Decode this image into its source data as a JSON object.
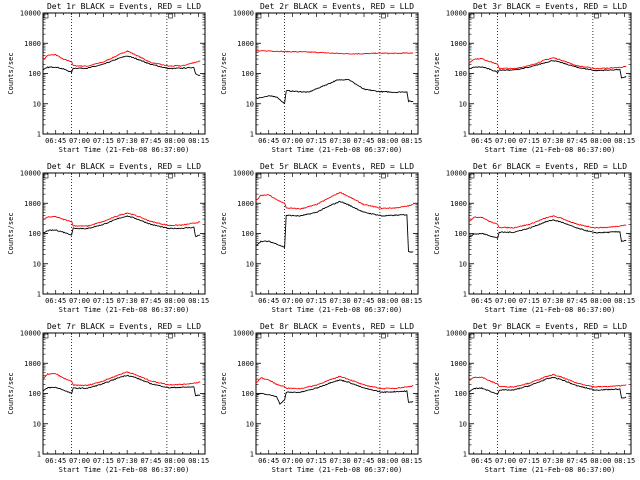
{
  "chart_data": [
    {
      "type": "line",
      "title": "Det 1r BLACK = Events, RED = LLD",
      "xlabel": "Start Time (21-Feb-08 06:37:00)",
      "ylabel": "Counts/sec",
      "yscale": "log",
      "ylim": [
        1,
        10000
      ],
      "xlim": [
        "06:37",
        "08:19"
      ],
      "x_ticks": [
        "06:45",
        "07:00",
        "07:15",
        "07:30",
        "07:45",
        "08:00",
        "08:15"
      ],
      "y_ticks": [
        "1",
        "10",
        "100",
        "1000",
        "10000"
      ],
      "markers": [
        "06:55",
        "07:55"
      ],
      "series": [
        {
          "color": "#ff0000",
          "x": [
            "06:37",
            "06:40",
            "06:45",
            "06:50",
            "06:55",
            "06:56",
            "07:05",
            "07:15",
            "07:25",
            "07:30",
            "07:35",
            "07:45",
            "07:55",
            "07:56",
            "08:05",
            "08:12",
            "08:16"
          ],
          "values": [
            280,
            400,
            420,
            290,
            250,
            180,
            175,
            240,
            420,
            560,
            420,
            230,
            180,
            175,
            180,
            230,
            260
          ]
        },
        {
          "color": "#000000",
          "x": [
            "06:37",
            "06:40",
            "06:45",
            "06:50",
            "06:55",
            "06:56",
            "07:05",
            "07:15",
            "07:25",
            "07:30",
            "07:35",
            "07:45",
            "07:55",
            "07:56",
            "08:05",
            "08:12",
            "08:13",
            "08:16"
          ],
          "values": [
            130,
            160,
            165,
            140,
            110,
            150,
            150,
            200,
            320,
            380,
            320,
            200,
            150,
            145,
            150,
            160,
            100,
            85
          ]
        }
      ]
    },
    {
      "type": "line",
      "title": "Det 2r BLACK = Events, RED = LLD",
      "xlabel": "Start Time (21-Feb-08 06:37:00)",
      "ylabel": "Counts/sec",
      "yscale": "log",
      "ylim": [
        1,
        10000
      ],
      "xlim": [
        "06:37",
        "08:19"
      ],
      "x_ticks": [
        "06:45",
        "07:00",
        "07:15",
        "07:30",
        "07:45",
        "08:00",
        "08:15"
      ],
      "y_ticks": [
        "1",
        "10",
        "100",
        "1000",
        "10000"
      ],
      "markers": [
        "06:55",
        "07:55"
      ],
      "series": [
        {
          "color": "#ff0000",
          "x": [
            "06:37",
            "06:45",
            "06:55",
            "07:05",
            "07:15",
            "07:25",
            "07:35",
            "07:45",
            "07:55",
            "08:05",
            "08:16"
          ],
          "values": [
            550,
            560,
            530,
            520,
            500,
            470,
            450,
            450,
            470,
            460,
            480
          ]
        },
        {
          "color": "#000000",
          "x": [
            "06:37",
            "06:45",
            "06:50",
            "06:55",
            "06:56",
            "07:05",
            "07:10",
            "07:20",
            "07:28",
            "07:35",
            "07:45",
            "07:55",
            "07:56",
            "08:05",
            "08:12",
            "08:13",
            "08:16"
          ],
          "values": [
            15,
            18,
            17,
            10,
            27,
            25,
            24,
            40,
            60,
            65,
            30,
            25,
            25,
            24,
            25,
            12,
            12
          ]
        }
      ]
    },
    {
      "type": "line",
      "title": "Det 3r BLACK = Events, RED = LLD",
      "xlabel": "Start Time (21-Feb-08 06:37:00)",
      "ylabel": "Counts/sec",
      "yscale": "log",
      "ylim": [
        1,
        10000
      ],
      "xlim": [
        "06:37",
        "08:19"
      ],
      "x_ticks": [
        "06:45",
        "07:00",
        "07:15",
        "07:30",
        "07:45",
        "08:00",
        "08:15"
      ],
      "y_ticks": [
        "1",
        "10",
        "100",
        "1000",
        "10000"
      ],
      "markers": [
        "06:55",
        "07:55"
      ],
      "series": [
        {
          "color": "#ff0000",
          "x": [
            "06:37",
            "06:40",
            "06:45",
            "06:50",
            "06:55",
            "06:56",
            "07:05",
            "07:15",
            "07:25",
            "07:30",
            "07:35",
            "07:45",
            "07:55",
            "07:56",
            "08:05",
            "08:12",
            "08:16"
          ],
          "values": [
            220,
            300,
            310,
            250,
            200,
            150,
            145,
            180,
            280,
            330,
            280,
            180,
            150,
            145,
            150,
            160,
            170
          ]
        },
        {
          "color": "#000000",
          "x": [
            "06:37",
            "06:40",
            "06:45",
            "06:50",
            "06:55",
            "06:56",
            "07:05",
            "07:15",
            "07:25",
            "07:30",
            "07:35",
            "07:45",
            "07:55",
            "07:56",
            "08:05",
            "08:12",
            "08:13",
            "08:16"
          ],
          "values": [
            140,
            160,
            165,
            140,
            110,
            130,
            130,
            160,
            230,
            270,
            230,
            160,
            130,
            125,
            130,
            135,
            70,
            80
          ]
        }
      ]
    },
    {
      "type": "line",
      "title": "Det 4r BLACK = Events, RED = LLD",
      "xlabel": "Start Time (21-Feb-08 06:37:00)",
      "ylabel": "Counts/sec",
      "yscale": "log",
      "ylim": [
        1,
        10000
      ],
      "xlim": [
        "06:37",
        "08:19"
      ],
      "x_ticks": [
        "06:45",
        "07:00",
        "07:15",
        "07:30",
        "07:45",
        "08:00",
        "08:15"
      ],
      "y_ticks": [
        "1",
        "10",
        "100",
        "1000",
        "10000"
      ],
      "markers": [
        "06:55",
        "07:55"
      ],
      "series": [
        {
          "color": "#ff0000",
          "x": [
            "06:37",
            "06:40",
            "06:45",
            "06:50",
            "06:55",
            "06:56",
            "07:05",
            "07:15",
            "07:25",
            "07:30",
            "07:35",
            "07:45",
            "07:55",
            "07:56",
            "08:05",
            "08:12",
            "08:16"
          ],
          "values": [
            280,
            350,
            360,
            290,
            250,
            180,
            175,
            250,
            400,
            480,
            400,
            250,
            190,
            185,
            190,
            220,
            240
          ]
        },
        {
          "color": "#000000",
          "x": [
            "06:37",
            "06:40",
            "06:45",
            "06:50",
            "06:55",
            "06:56",
            "07:05",
            "07:15",
            "07:25",
            "07:30",
            "07:35",
            "07:45",
            "07:55",
            "07:56",
            "08:05",
            "08:12",
            "08:13",
            "08:16"
          ],
          "values": [
            100,
            125,
            130,
            110,
            90,
            150,
            145,
            200,
            320,
            380,
            320,
            200,
            150,
            145,
            150,
            160,
            80,
            90
          ]
        }
      ]
    },
    {
      "type": "line",
      "title": "Det 5r BLACK = Events, RED = LLD",
      "xlabel": "Start Time (21-Feb-08 06:37:00)",
      "ylabel": "Counts/sec",
      "yscale": "log",
      "ylim": [
        1,
        10000
      ],
      "xlim": [
        "06:37",
        "08:19"
      ],
      "x_ticks": [
        "06:45",
        "07:00",
        "07:15",
        "07:30",
        "07:45",
        "08:00",
        "08:15"
      ],
      "y_ticks": [
        "1",
        "10",
        "100",
        "1000",
        "10000"
      ],
      "markers": [
        "06:55",
        "07:55"
      ],
      "series": [
        {
          "color": "#ff0000",
          "x": [
            "06:37",
            "06:40",
            "06:45",
            "06:50",
            "06:55",
            "06:56",
            "07:05",
            "07:15",
            "07:25",
            "07:30",
            "07:35",
            "07:45",
            "07:55",
            "07:56",
            "08:05",
            "08:12",
            "08:16"
          ],
          "values": [
            1200,
            1800,
            1900,
            1300,
            1000,
            700,
            650,
            900,
            1700,
            2300,
            1700,
            900,
            700,
            680,
            700,
            800,
            900
          ]
        },
        {
          "color": "#000000",
          "x": [
            "06:37",
            "06:40",
            "06:45",
            "06:50",
            "06:55",
            "06:56",
            "07:05",
            "07:15",
            "07:25",
            "07:30",
            "07:35",
            "07:45",
            "07:55",
            "07:56",
            "08:05",
            "08:12",
            "08:13",
            "08:16"
          ],
          "values": [
            40,
            55,
            55,
            45,
            35,
            400,
            380,
            500,
            900,
            1150,
            900,
            500,
            400,
            380,
            400,
            420,
            25,
            25
          ]
        }
      ]
    },
    {
      "type": "line",
      "title": "Det 6r BLACK = Events, RED = LLD",
      "xlabel": "Start Time (21-Feb-08 06:37:00)",
      "ylabel": "Counts/sec",
      "yscale": "log",
      "ylim": [
        1,
        10000
      ],
      "xlim": [
        "06:37",
        "08:19"
      ],
      "x_ticks": [
        "06:45",
        "07:00",
        "07:15",
        "07:30",
        "07:45",
        "08:00",
        "08:15"
      ],
      "y_ticks": [
        "1",
        "10",
        "100",
        "1000",
        "10000"
      ],
      "markers": [
        "06:55",
        "07:55"
      ],
      "series": [
        {
          "color": "#ff0000",
          "x": [
            "06:37",
            "06:40",
            "06:45",
            "06:50",
            "06:55",
            "06:56",
            "07:05",
            "07:15",
            "07:25",
            "07:30",
            "07:35",
            "07:45",
            "07:55",
            "07:56",
            "08:05",
            "08:12",
            "08:16"
          ],
          "values": [
            250,
            340,
            350,
            250,
            200,
            160,
            155,
            200,
            320,
            380,
            320,
            200,
            160,
            155,
            160,
            180,
            190
          ]
        },
        {
          "color": "#000000",
          "x": [
            "06:37",
            "06:40",
            "06:45",
            "06:50",
            "06:55",
            "06:56",
            "07:05",
            "07:15",
            "07:25",
            "07:30",
            "07:35",
            "07:45",
            "07:55",
            "07:56",
            "08:05",
            "08:12",
            "08:13",
            "08:16"
          ],
          "values": [
            75,
            95,
            100,
            85,
            70,
            110,
            110,
            150,
            240,
            280,
            240,
            150,
            110,
            105,
            110,
            115,
            55,
            60
          ]
        }
      ]
    },
    {
      "type": "line",
      "title": "Det 7r BLACK = Events, RED = LLD",
      "xlabel": "Start Time (21-Feb-08 06:37:00)",
      "ylabel": "Counts/sec",
      "yscale": "log",
      "ylim": [
        1,
        10000
      ],
      "xlim": [
        "06:37",
        "08:19"
      ],
      "x_ticks": [
        "06:45",
        "07:00",
        "07:15",
        "07:30",
        "07:45",
        "08:00",
        "08:15"
      ],
      "y_ticks": [
        "1",
        "10",
        "100",
        "1000",
        "10000"
      ],
      "markers": [
        "06:55",
        "07:55"
      ],
      "series": [
        {
          "color": "#ff0000",
          "x": [
            "06:37",
            "06:40",
            "06:45",
            "06:50",
            "06:55",
            "06:56",
            "07:05",
            "07:15",
            "07:25",
            "07:30",
            "07:35",
            "07:45",
            "07:55",
            "07:56",
            "08:05",
            "08:12",
            "08:16"
          ],
          "values": [
            300,
            440,
            450,
            320,
            250,
            190,
            185,
            260,
            420,
            520,
            420,
            260,
            200,
            195,
            200,
            220,
            240
          ]
        },
        {
          "color": "#000000",
          "x": [
            "06:37",
            "06:40",
            "06:45",
            "06:50",
            "06:55",
            "06:56",
            "07:05",
            "07:15",
            "07:25",
            "07:30",
            "07:35",
            "07:45",
            "07:55",
            "07:56",
            "08:05",
            "08:12",
            "08:13",
            "08:16"
          ],
          "values": [
            120,
            155,
            160,
            130,
            100,
            150,
            150,
            210,
            340,
            400,
            340,
            210,
            160,
            155,
            160,
            165,
            85,
            90
          ]
        }
      ]
    },
    {
      "type": "line",
      "title": "Det 8r BLACK = Events, RED = LLD",
      "xlabel": "Start Time (21-Feb-08 06:37:00)",
      "ylabel": "Counts/sec",
      "yscale": "log",
      "ylim": [
        1,
        10000
      ],
      "xlim": [
        "06:37",
        "08:19"
      ],
      "x_ticks": [
        "06:45",
        "07:00",
        "07:15",
        "07:30",
        "07:45",
        "08:00",
        "08:15"
      ],
      "y_ticks": [
        "1",
        "10",
        "100",
        "1000",
        "10000"
      ],
      "markers": [
        "06:55",
        "07:55"
      ],
      "series": [
        {
          "color": "#ff0000",
          "x": [
            "06:37",
            "06:40",
            "06:45",
            "06:50",
            "06:55",
            "06:56",
            "07:05",
            "07:15",
            "07:25",
            "07:30",
            "07:35",
            "07:45",
            "07:55",
            "07:56",
            "08:05",
            "08:12",
            "08:16"
          ],
          "values": [
            220,
            330,
            280,
            200,
            170,
            150,
            145,
            190,
            300,
            370,
            300,
            190,
            150,
            145,
            150,
            165,
            180
          ]
        },
        {
          "color": "#000000",
          "x": [
            "06:37",
            "06:40",
            "06:45",
            "06:50",
            "06:52",
            "06:55",
            "06:56",
            "07:05",
            "07:15",
            "07:25",
            "07:30",
            "07:35",
            "07:45",
            "07:55",
            "07:56",
            "08:05",
            "08:12",
            "08:13",
            "08:16"
          ],
          "values": [
            90,
            100,
            90,
            80,
            45,
            60,
            110,
            110,
            150,
            240,
            280,
            240,
            150,
            115,
            110,
            115,
            120,
            50,
            55
          ]
        }
      ]
    },
    {
      "type": "line",
      "title": "Det 9r BLACK = Events, RED = LLD",
      "xlabel": "Start Time (21-Feb-08 06:37:00)",
      "ylabel": "Counts/sec",
      "yscale": "log",
      "ylim": [
        1,
        10000
      ],
      "xlim": [
        "06:37",
        "08:19"
      ],
      "x_ticks": [
        "06:45",
        "07:00",
        "07:15",
        "07:30",
        "07:45",
        "08:00",
        "08:15"
      ],
      "y_ticks": [
        "1",
        "10",
        "100",
        "1000",
        "10000"
      ],
      "markers": [
        "06:55",
        "07:55"
      ],
      "series": [
        {
          "color": "#ff0000",
          "x": [
            "06:37",
            "06:40",
            "06:45",
            "06:50",
            "06:55",
            "06:56",
            "07:05",
            "07:15",
            "07:25",
            "07:30",
            "07:35",
            "07:45",
            "07:55",
            "07:56",
            "08:05",
            "08:12",
            "08:16"
          ],
          "values": [
            260,
            340,
            350,
            260,
            210,
            170,
            165,
            220,
            350,
            420,
            350,
            220,
            170,
            165,
            170,
            180,
            195
          ]
        },
        {
          "color": "#000000",
          "x": [
            "06:37",
            "06:40",
            "06:45",
            "06:50",
            "06:55",
            "06:56",
            "07:05",
            "07:15",
            "07:25",
            "07:30",
            "07:35",
            "07:45",
            "07:55",
            "07:56",
            "08:05",
            "08:12",
            "08:13",
            "08:16"
          ],
          "values": [
            110,
            145,
            150,
            120,
            95,
            130,
            130,
            180,
            290,
            340,
            290,
            180,
            135,
            130,
            135,
            140,
            70,
            75
          ]
        }
      ]
    }
  ]
}
